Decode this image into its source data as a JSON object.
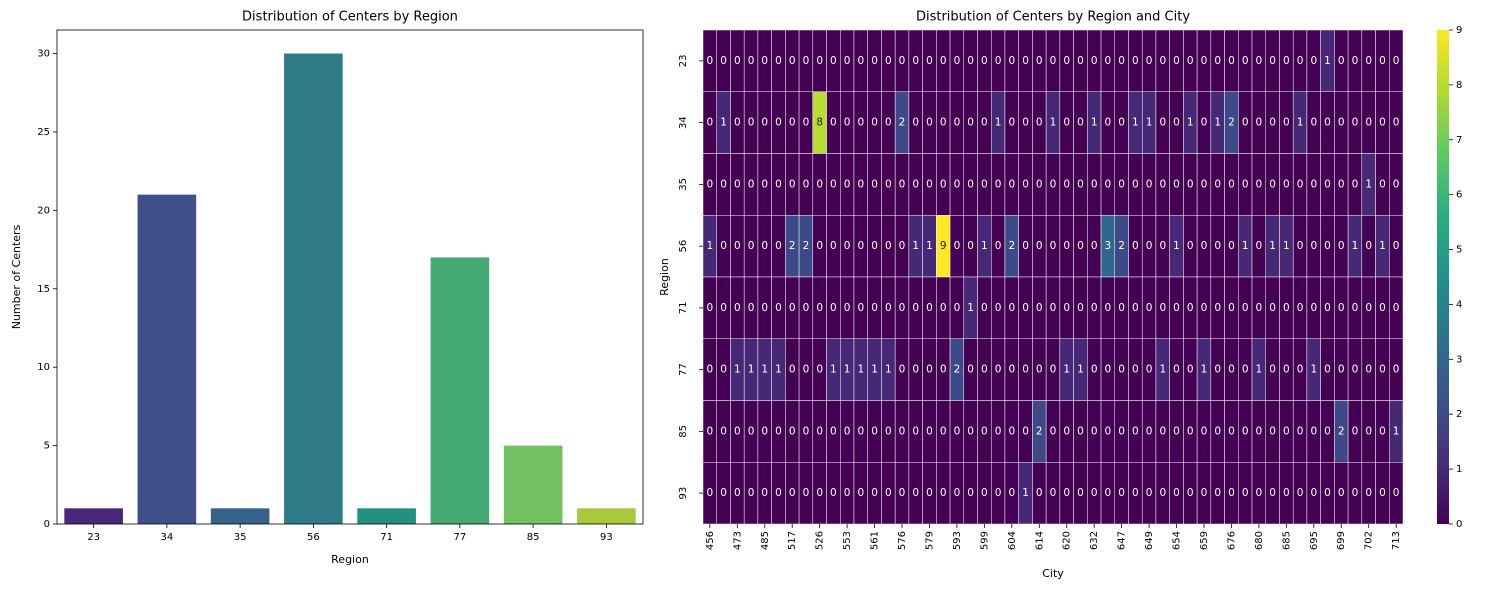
{
  "chart_data": [
    {
      "type": "bar",
      "title": "Distribution of Centers by Region",
      "x_label": "Region",
      "y_label": "Number of Centers",
      "categories": [
        "23",
        "34",
        "35",
        "56",
        "71",
        "77",
        "85",
        "93"
      ],
      "values": [
        1,
        21,
        1,
        30,
        1,
        17,
        5,
        1
      ],
      "colors": [
        "#482878",
        "#3e4f8a",
        "#35618d",
        "#2f7a87",
        "#23907f",
        "#44a973",
        "#72c062",
        "#a9c83c"
      ],
      "ylim": [
        0,
        31.5
      ],
      "yticks": [
        0,
        5,
        10,
        15,
        20,
        25,
        30
      ]
    },
    {
      "type": "heatmap",
      "title": "Distribution of Centers by Region and City",
      "x_label": "City",
      "y_label": "Region",
      "x": [
        "456",
        null,
        "473",
        null,
        "485",
        null,
        "517",
        null,
        "526",
        null,
        "553",
        null,
        "561",
        null,
        "576",
        null,
        "579",
        null,
        "593",
        null,
        "599",
        null,
        "604",
        null,
        "614",
        null,
        "620",
        null,
        "632",
        null,
        "647",
        null,
        "649",
        null,
        "654",
        null,
        "659",
        null,
        "676",
        null,
        "680",
        null,
        "685",
        null,
        "695",
        null,
        "699",
        null,
        "702",
        null,
        "713"
      ],
      "y": [
        "23",
        "34",
        "35",
        "56",
        "71",
        "77",
        "85",
        "93"
      ],
      "values": [
        [
          0,
          0,
          0,
          0,
          0,
          0,
          0,
          0,
          0,
          0,
          0,
          0,
          0,
          0,
          0,
          0,
          0,
          0,
          0,
          0,
          0,
          0,
          0,
          0,
          0,
          0,
          0,
          0,
          0,
          0,
          0,
          0,
          0,
          0,
          0,
          0,
          0,
          0,
          0,
          0,
          0,
          0,
          0,
          0,
          0,
          1,
          0,
          0,
          0,
          0,
          0
        ],
        [
          0,
          1,
          0,
          0,
          0,
          0,
          0,
          0,
          8,
          0,
          0,
          0,
          0,
          0,
          2,
          0,
          0,
          0,
          0,
          0,
          0,
          1,
          0,
          0,
          0,
          1,
          0,
          0,
          1,
          0,
          0,
          1,
          1,
          0,
          0,
          1,
          0,
          1,
          2,
          0,
          0,
          0,
          0,
          1,
          0,
          0,
          0,
          0,
          0,
          0,
          0
        ],
        [
          0,
          0,
          0,
          0,
          0,
          0,
          0,
          0,
          0,
          0,
          0,
          0,
          0,
          0,
          0,
          0,
          0,
          0,
          0,
          0,
          0,
          0,
          0,
          0,
          0,
          0,
          0,
          0,
          0,
          0,
          0,
          0,
          0,
          0,
          0,
          0,
          0,
          0,
          0,
          0,
          0,
          0,
          0,
          0,
          0,
          0,
          0,
          0,
          1,
          0,
          0
        ],
        [
          1,
          0,
          0,
          0,
          0,
          0,
          2,
          2,
          0,
          0,
          0,
          0,
          0,
          0,
          0,
          1,
          1,
          9,
          0,
          0,
          1,
          0,
          2,
          0,
          0,
          0,
          0,
          0,
          0,
          3,
          2,
          0,
          0,
          0,
          1,
          0,
          0,
          0,
          0,
          1,
          0,
          1,
          1,
          0,
          0,
          0,
          0,
          1,
          0,
          1,
          0
        ],
        [
          0,
          0,
          0,
          0,
          0,
          0,
          0,
          0,
          0,
          0,
          0,
          0,
          0,
          0,
          0,
          0,
          0,
          0,
          0,
          1,
          0,
          0,
          0,
          0,
          0,
          0,
          0,
          0,
          0,
          0,
          0,
          0,
          0,
          0,
          0,
          0,
          0,
          0,
          0,
          0,
          0,
          0,
          0,
          0,
          0,
          0,
          0,
          0,
          0,
          0,
          0
        ],
        [
          0,
          0,
          1,
          1,
          1,
          1,
          0,
          0,
          0,
          1,
          1,
          1,
          1,
          1,
          0,
          0,
          0,
          0,
          2,
          0,
          0,
          0,
          0,
          0,
          0,
          0,
          1,
          1,
          0,
          0,
          0,
          0,
          0,
          1,
          0,
          0,
          1,
          0,
          0,
          0,
          1,
          0,
          0,
          0,
          1,
          0,
          0,
          0,
          0,
          0,
          0
        ],
        [
          0,
          0,
          0,
          0,
          0,
          0,
          0,
          0,
          0,
          0,
          0,
          0,
          0,
          0,
          0,
          0,
          0,
          0,
          0,
          0,
          0,
          0,
          0,
          0,
          2,
          0,
          0,
          0,
          0,
          0,
          0,
          0,
          0,
          0,
          0,
          0,
          0,
          0,
          0,
          0,
          0,
          0,
          0,
          0,
          0,
          0,
          2,
          0,
          0,
          0,
          1
        ],
        [
          0,
          0,
          0,
          0,
          0,
          0,
          0,
          0,
          0,
          0,
          0,
          0,
          0,
          0,
          0,
          0,
          0,
          0,
          0,
          0,
          0,
          0,
          0,
          1,
          0,
          0,
          0,
          0,
          0,
          0,
          0,
          0,
          0,
          0,
          0,
          0,
          0,
          0,
          0,
          0,
          0,
          0,
          0,
          0,
          0,
          0,
          0,
          0,
          0,
          0,
          0
        ]
      ],
      "colormap": "viridis",
      "colorbar_lim": [
        0,
        9
      ],
      "colorbar_ticks": [
        0,
        1,
        2,
        3,
        4,
        5,
        6,
        7,
        8,
        9
      ]
    }
  ]
}
